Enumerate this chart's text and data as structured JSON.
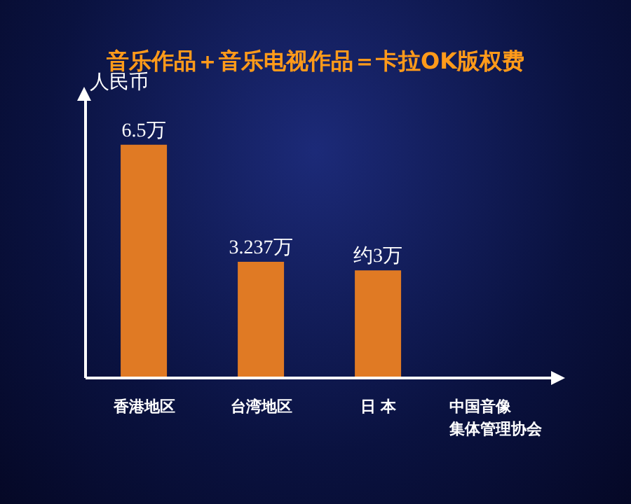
{
  "chart_data": {
    "type": "bar",
    "title": "音乐作品＋音乐电视作品＝卡拉OK版权费",
    "ylabel": "人民币",
    "categories": [
      "香港地区",
      "台湾地区",
      "日 本",
      "中国音像集体管理协会"
    ],
    "values": [
      6.5,
      3.237,
      3,
      null
    ],
    "value_labels": [
      "6.5万",
      "3.237万",
      "约3万",
      null
    ],
    "color": "#e07a24"
  }
}
